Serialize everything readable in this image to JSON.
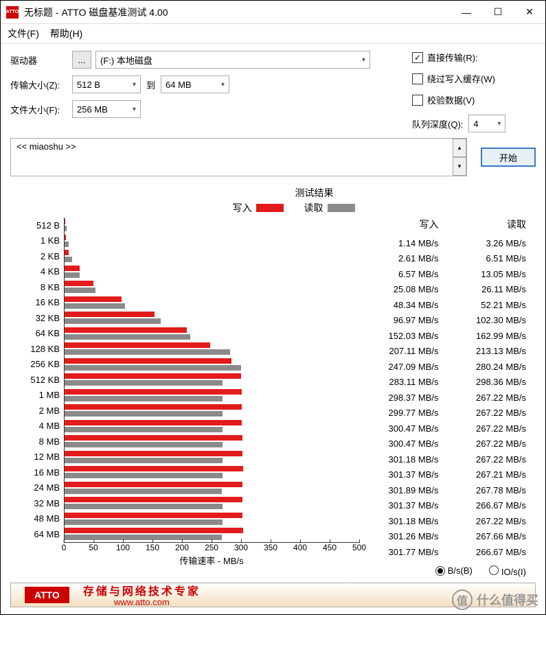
{
  "window": {
    "title": "无标题 - ATTO 磁盘基准测试 4.00"
  },
  "menu": {
    "file": "文件(F)",
    "help": "帮助(H)"
  },
  "form": {
    "drive_label": "驱动器",
    "drive_value": "(F:) 本地磁盘",
    "xfer_label": "传输大小(Z):",
    "xfer_from": "512 B",
    "to": "到",
    "xfer_to": "64 MB",
    "filesize_label": "文件大小(F):",
    "filesize_value": "256 MB"
  },
  "opts": {
    "direct": {
      "label": "直接传输(R):",
      "checked": true
    },
    "bypass": {
      "label": "绕过写入缓存(W)",
      "checked": false
    },
    "verify": {
      "label": "校验数据(V)",
      "checked": false
    },
    "qd_label": "队列深度(Q):",
    "qd_value": "4"
  },
  "desc": {
    "placeholder": "<< miaoshu >>"
  },
  "start": "开始",
  "chart": {
    "title": "测试结果",
    "write_label": "写入",
    "read_label": "读取",
    "write_color": "#e31b1b",
    "read_color": "#8a8a8a",
    "axis_label": "传输速率 - MB/s",
    "xmax": 500,
    "ticks": [
      0,
      50,
      100,
      150,
      200,
      250,
      300,
      350,
      400,
      450,
      500
    ],
    "unit": " MB/s"
  },
  "header": {
    "write": "写入",
    "read": "读取"
  },
  "rows": [
    {
      "label": "512 B",
      "write": 1.14,
      "read": 3.26
    },
    {
      "label": "1 KB",
      "write": 2.61,
      "read": 6.51
    },
    {
      "label": "2 KB",
      "write": 6.57,
      "read": 13.05
    },
    {
      "label": "4 KB",
      "write": 25.08,
      "read": 26.11
    },
    {
      "label": "8 KB",
      "write": 48.34,
      "read": 52.21
    },
    {
      "label": "16 KB",
      "write": 96.97,
      "read": 102.3
    },
    {
      "label": "32 KB",
      "write": 152.03,
      "read": 162.99
    },
    {
      "label": "64 KB",
      "write": 207.11,
      "read": 213.13
    },
    {
      "label": "128 KB",
      "write": 247.09,
      "read": 280.24
    },
    {
      "label": "256 KB",
      "write": 283.11,
      "read": 298.36
    },
    {
      "label": "512 KB",
      "write": 298.37,
      "read": 267.22
    },
    {
      "label": "1 MB",
      "write": 299.77,
      "read": 267.22
    },
    {
      "label": "2 MB",
      "write": 300.47,
      "read": 267.22
    },
    {
      "label": "4 MB",
      "write": 300.47,
      "read": 267.22
    },
    {
      "label": "8 MB",
      "write": 301.18,
      "read": 267.22
    },
    {
      "label": "12 MB",
      "write": 301.37,
      "read": 267.21
    },
    {
      "label": "16 MB",
      "write": 301.89,
      "read": 267.78
    },
    {
      "label": "24 MB",
      "write": 301.37,
      "read": 266.67
    },
    {
      "label": "32 MB",
      "write": 301.18,
      "read": 267.22
    },
    {
      "label": "48 MB",
      "write": 301.26,
      "read": 267.66
    },
    {
      "label": "64 MB",
      "write": 301.77,
      "read": 266.67
    }
  ],
  "radio": {
    "bs": "B/s(B)",
    "ios": "IO/s(I)"
  },
  "footer": {
    "brand": "ATTO",
    "slogan": "存储与网络技术专家",
    "url": "www.atto.com"
  },
  "watermark": "什么值得买"
}
